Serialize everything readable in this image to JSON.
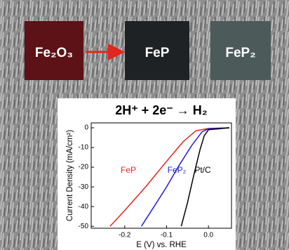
{
  "samples": [
    "Fe₂O₃",
    "FeP",
    "FeP₂"
  ],
  "chart_data": {
    "type": "line",
    "title": "2H⁺ + 2e⁻ → H₂",
    "xlabel": "E (V) vs. RHE",
    "ylabel": "Current Density (mA/cm²)",
    "xlim": [
      -0.28,
      0.055
    ],
    "ylim": [
      -51,
      2.5
    ],
    "xticks": [
      -0.2,
      -0.1,
      {
        "value": 0,
        "label": "0.0"
      }
    ],
    "yticks": [
      0,
      -10,
      -20,
      -30,
      -40,
      -50
    ],
    "series": [
      {
        "name": "FeP",
        "color": "#e0261f",
        "x": [
          -0.235,
          -0.2,
          -0.15,
          -0.1,
          -0.06,
          -0.03,
          0.0,
          0.05
        ],
        "values": [
          -50,
          -42,
          -30,
          -17,
          -7,
          -1.5,
          -0.3,
          0
        ]
      },
      {
        "name": "FeP₂",
        "color": "#1f1fe0",
        "x": [
          -0.16,
          -0.13,
          -0.1,
          -0.07,
          -0.04,
          -0.015,
          0.0,
          0.05
        ],
        "values": [
          -50,
          -40,
          -30,
          -19,
          -9,
          -2,
          -0.5,
          0
        ]
      },
      {
        "name": "Pt/C",
        "color": "#000000",
        "x": [
          -0.065,
          -0.05,
          -0.035,
          -0.02,
          -0.01,
          0.0,
          0.05
        ],
        "values": [
          -50,
          -38,
          -24,
          -11,
          -4,
          -1,
          0
        ]
      }
    ]
  }
}
